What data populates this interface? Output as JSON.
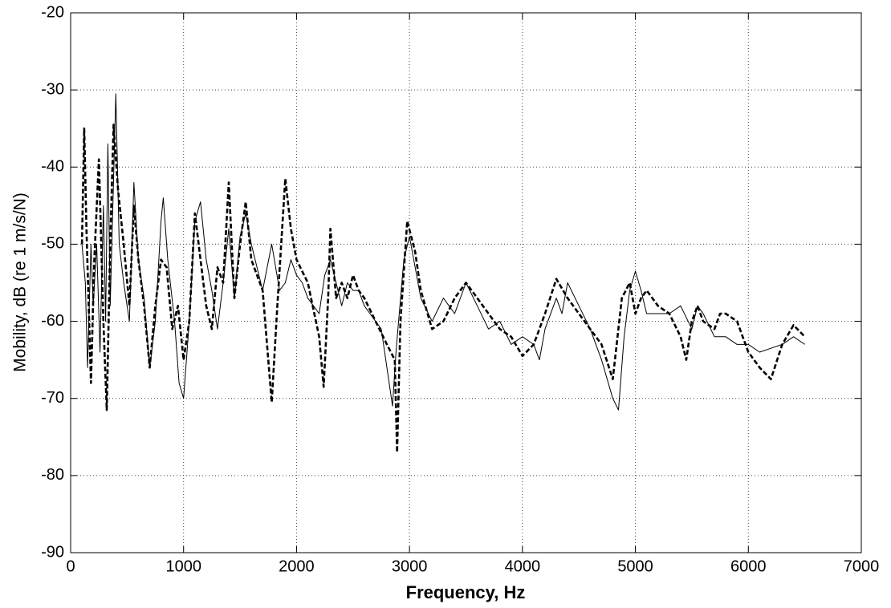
{
  "chart_data": {
    "type": "line",
    "xlabel": "Frequency, Hz",
    "ylabel": "Mobility, dB (re 1 m/s/N)",
    "xlim": [
      0,
      7000
    ],
    "xticks": [
      0,
      1000,
      2000,
      3000,
      4000,
      5000,
      6000,
      7000
    ],
    "ylim": [
      -90,
      -20
    ],
    "yticks": [
      -90,
      -80,
      -70,
      -60,
      -50,
      -40,
      -30,
      -20
    ],
    "grid": true,
    "series": [
      {
        "color": "#000000",
        "line_style": "solid",
        "x": [
          100,
          130,
          150,
          180,
          200,
          230,
          260,
          290,
          310,
          330,
          350,
          370,
          400,
          430,
          470,
          520,
          560,
          600,
          650,
          700,
          750,
          800,
          820,
          860,
          920,
          960,
          1000,
          1050,
          1100,
          1150,
          1200,
          1250,
          1300,
          1350,
          1400,
          1450,
          1500,
          1550,
          1600,
          1700,
          1780,
          1850,
          1900,
          1950,
          2000,
          2050,
          2100,
          2150,
          2200,
          2250,
          2300,
          2350,
          2400,
          2450,
          2500,
          2550,
          2600,
          2650,
          2700,
          2750,
          2800,
          2850,
          2880,
          2950,
          3000,
          3050,
          3100,
          3200,
          3300,
          3400,
          3500,
          3600,
          3700,
          3800,
          3900,
          4000,
          4100,
          4150,
          4200,
          4300,
          4350,
          4400,
          4500,
          4600,
          4700,
          4800,
          4850,
          4900,
          4950,
          5000,
          5050,
          5100,
          5200,
          5300,
          5400,
          5500,
          5550,
          5600,
          5700,
          5800,
          5900,
          6000,
          6100,
          6200,
          6300,
          6400,
          6500
        ],
        "values": [
          -50,
          -55,
          -66,
          -50,
          -58,
          -50,
          -64,
          -45,
          -60,
          -37,
          -58,
          -47,
          -30.5,
          -50,
          -55,
          -60,
          -42,
          -52,
          -57,
          -66,
          -60,
          -47,
          -44,
          -52,
          -60,
          -68,
          -70,
          -60,
          -47,
          -44.5,
          -52,
          -56,
          -61,
          -55,
          -48,
          -57,
          -49,
          -46,
          -50,
          -56,
          -50,
          -56,
          -55,
          -52,
          -54,
          -55,
          -57,
          -58,
          -59,
          -54,
          -52,
          -55,
          -58,
          -55,
          -56,
          -56,
          -58,
          -59,
          -60,
          -61,
          -66,
          -71,
          -64,
          -52,
          -49,
          -53,
          -57,
          -60,
          -57,
          -59,
          -55,
          -58,
          -61,
          -60,
          -63,
          -62,
          -63,
          -65,
          -61,
          -57,
          -59,
          -55,
          -58,
          -61,
          -65,
          -70,
          -71.5,
          -62,
          -56,
          -53.5,
          -56,
          -59,
          -59,
          -59,
          -58,
          -61,
          -58,
          -59,
          -62,
          -62,
          -63,
          -63,
          -64,
          -63.5,
          -63,
          -62,
          -63
        ]
      },
      {
        "color": "#000000",
        "line_style": "dashed",
        "x": [
          100,
          120,
          140,
          180,
          210,
          250,
          290,
          320,
          350,
          380,
          420,
          470,
          520,
          560,
          600,
          650,
          700,
          750,
          800,
          850,
          900,
          950,
          1000,
          1050,
          1100,
          1150,
          1200,
          1250,
          1300,
          1350,
          1400,
          1450,
          1500,
          1550,
          1600,
          1700,
          1780,
          1830,
          1900,
          1950,
          2000,
          2100,
          2200,
          2240,
          2280,
          2300,
          2350,
          2400,
          2450,
          2500,
          2550,
          2600,
          2700,
          2800,
          2870,
          2890,
          2920,
          2980,
          3050,
          3100,
          3200,
          3300,
          3400,
          3500,
          3600,
          3700,
          3800,
          3900,
          4000,
          4100,
          4200,
          4300,
          4400,
          4500,
          4600,
          4700,
          4800,
          4880,
          4950,
          5000,
          5050,
          5100,
          5200,
          5300,
          5400,
          5450,
          5500,
          5550,
          5600,
          5700,
          5750,
          5800,
          5900,
          6000,
          6100,
          6200,
          6300,
          6400,
          6500
        ],
        "values": [
          -50,
          -35,
          -48,
          -68,
          -52,
          -39,
          -60,
          -71.5,
          -50,
          -34.5,
          -43,
          -50,
          -58,
          -45,
          -52,
          -58,
          -66,
          -58,
          -52,
          -53,
          -61,
          -58,
          -65,
          -60,
          -46,
          -52,
          -58,
          -61,
          -53,
          -55,
          -42,
          -57,
          -50,
          -44.5,
          -52,
          -56,
          -70.5,
          -58,
          -41.5,
          -48,
          -52,
          -55,
          -62,
          -68.5,
          -57,
          -48,
          -57,
          -55,
          -57,
          -54,
          -56,
          -57,
          -60,
          -63,
          -65,
          -77,
          -60,
          -47,
          -51,
          -56,
          -61,
          -60,
          -57,
          -55,
          -57,
          -59,
          -61,
          -62,
          -64.5,
          -63,
          -59,
          -54.5,
          -57,
          -59,
          -61,
          -63,
          -67.5,
          -57,
          -55,
          -59,
          -57,
          -56,
          -58,
          -59,
          -62,
          -65,
          -60,
          -58,
          -60,
          -61,
          -59,
          -59,
          -60,
          -64,
          -66,
          -67.5,
          -63,
          -60.5,
          -62
        ]
      }
    ]
  }
}
